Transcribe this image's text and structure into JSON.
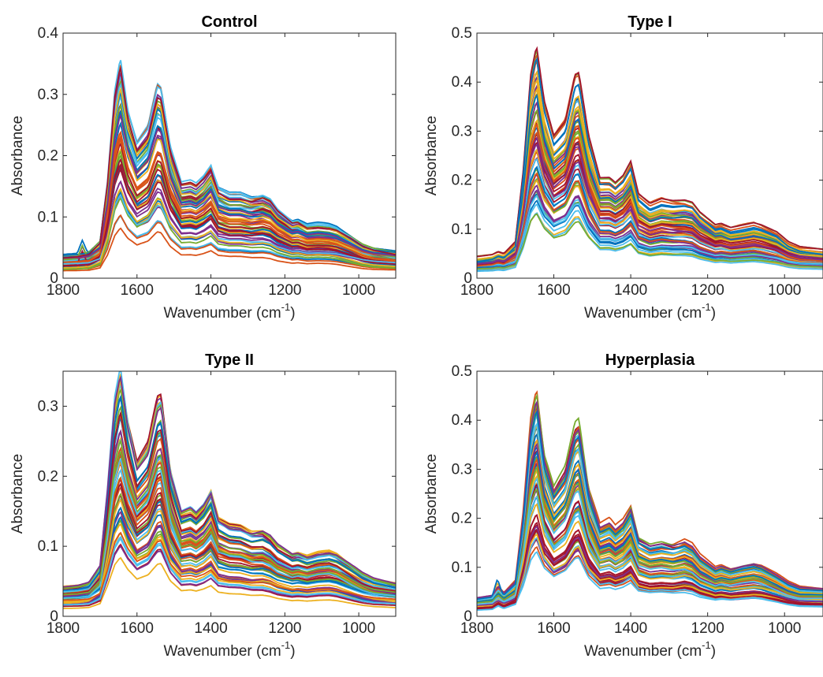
{
  "chart_data": [
    {
      "type": "line",
      "title": "Control",
      "xlabel": {
        "main": "Wavenumber (cm",
        "sup": "-1",
        "close": ")"
      },
      "ylabel": "Absorbance",
      "xlim": [
        1800,
        900
      ],
      "ylim": [
        0,
        0.4
      ],
      "xticks": [
        1800,
        1600,
        1400,
        1200,
        1000
      ],
      "yticks": [
        0,
        0.1,
        0.2,
        0.3,
        0.4
      ],
      "ytick_labels": [
        "0",
        "0.1",
        "0.2",
        "0.3",
        "0.4"
      ],
      "series_count": 60,
      "amplitude_range": [
        0.075,
        0.355
      ],
      "shoulder_1745": true,
      "palette": [
        "#0072BD",
        "#D95319",
        "#EDB120",
        "#7E2F8E",
        "#77AC30",
        "#4DBEEE",
        "#A2142F"
      ],
      "representative_spectrum": {
        "x": [
          1800,
          1760,
          1745,
          1730,
          1700,
          1680,
          1660,
          1645,
          1625,
          1600,
          1570,
          1545,
          1535,
          1510,
          1480,
          1455,
          1440,
          1420,
          1400,
          1380,
          1350,
          1320,
          1290,
          1260,
          1240,
          1220,
          1180,
          1165,
          1140,
          1110,
          1080,
          1060,
          1020,
          990,
          960,
          900
        ],
        "y": [
          0.026,
          0.028,
          0.03,
          0.031,
          0.05,
          0.15,
          0.3,
          0.355,
          0.27,
          0.215,
          0.24,
          0.31,
          0.305,
          0.21,
          0.15,
          0.153,
          0.148,
          0.16,
          0.178,
          0.14,
          0.13,
          0.13,
          0.124,
          0.128,
          0.122,
          0.105,
          0.085,
          0.087,
          0.078,
          0.08,
          0.078,
          0.074,
          0.058,
          0.045,
          0.038,
          0.032
        ]
      }
    },
    {
      "type": "line",
      "title": "Type I",
      "xlabel": {
        "main": "Wavenumber (cm",
        "sup": "-1",
        "close": ")"
      },
      "ylabel": "Absorbance",
      "xlim": [
        1800,
        900
      ],
      "ylim": [
        0,
        0.5
      ],
      "xticks": [
        1800,
        1600,
        1400,
        1200,
        1000
      ],
      "yticks": [
        0,
        0.1,
        0.2,
        0.3,
        0.4,
        0.5
      ],
      "ytick_labels": [
        "0",
        "0.1",
        "0.2",
        "0.3",
        "0.4",
        "0.5"
      ],
      "series_count": 60,
      "amplitude_range": [
        0.1,
        0.46
      ],
      "shoulder_1745": false,
      "palette": [
        "#0072BD",
        "#D95319",
        "#EDB120",
        "#7E2F8E",
        "#77AC30",
        "#4DBEEE",
        "#A2142F"
      ],
      "representative_spectrum": {
        "x": [
          1800,
          1760,
          1745,
          1730,
          1700,
          1680,
          1660,
          1645,
          1625,
          1600,
          1570,
          1545,
          1535,
          1510,
          1480,
          1455,
          1440,
          1420,
          1400,
          1380,
          1350,
          1320,
          1290,
          1260,
          1240,
          1220,
          1180,
          1165,
          1140,
          1110,
          1080,
          1060,
          1020,
          990,
          960,
          900
        ],
        "y": [
          0.03,
          0.034,
          0.04,
          0.036,
          0.06,
          0.2,
          0.4,
          0.46,
          0.35,
          0.28,
          0.31,
          0.405,
          0.41,
          0.28,
          0.19,
          0.19,
          0.18,
          0.195,
          0.225,
          0.16,
          0.14,
          0.15,
          0.145,
          0.145,
          0.14,
          0.12,
          0.095,
          0.098,
          0.09,
          0.095,
          0.1,
          0.095,
          0.08,
          0.06,
          0.05,
          0.045
        ]
      }
    },
    {
      "type": "line",
      "title": "Type II",
      "xlabel": {
        "main": "Wavenumber (cm",
        "sup": "-1",
        "close": ")"
      },
      "ylabel": "Absorbance",
      "xlim": [
        1800,
        900
      ],
      "ylim": [
        0,
        0.35
      ],
      "xticks": [
        1800,
        1600,
        1400,
        1200,
        1000
      ],
      "yticks": [
        0,
        0.1,
        0.2,
        0.3
      ],
      "ytick_labels": [
        "0",
        "0.1",
        "0.2",
        "0.3"
      ],
      "series_count": 60,
      "amplitude_range": [
        0.07,
        0.345
      ],
      "shoulder_1745": false,
      "palette": [
        "#0072BD",
        "#D95319",
        "#EDB120",
        "#7E2F8E",
        "#77AC30",
        "#4DBEEE",
        "#A2142F"
      ],
      "representative_spectrum": {
        "x": [
          1800,
          1760,
          1745,
          1730,
          1700,
          1680,
          1660,
          1645,
          1625,
          1600,
          1570,
          1545,
          1535,
          1510,
          1480,
          1455,
          1440,
          1420,
          1400,
          1380,
          1350,
          1320,
          1290,
          1260,
          1240,
          1220,
          1180,
          1165,
          1140,
          1110,
          1080,
          1060,
          1020,
          990,
          960,
          900
        ],
        "y": [
          0.03,
          0.032,
          0.034,
          0.036,
          0.06,
          0.17,
          0.3,
          0.345,
          0.27,
          0.21,
          0.235,
          0.3,
          0.305,
          0.2,
          0.14,
          0.145,
          0.138,
          0.15,
          0.17,
          0.13,
          0.12,
          0.118,
          0.11,
          0.112,
          0.105,
          0.092,
          0.078,
          0.08,
          0.075,
          0.08,
          0.082,
          0.078,
          0.062,
          0.05,
          0.042,
          0.035
        ]
      }
    },
    {
      "type": "line",
      "title": "Hyperplasia",
      "xlabel": {
        "main": "Wavenumber (cm",
        "sup": "-1",
        "close": ")"
      },
      "ylabel": "Absorbance",
      "xlim": [
        1800,
        900
      ],
      "ylim": [
        0,
        0.5
      ],
      "xticks": [
        1800,
        1600,
        1400,
        1200,
        1000
      ],
      "yticks": [
        0,
        0.1,
        0.2,
        0.3,
        0.4,
        0.5
      ],
      "ytick_labels": [
        "0",
        "0.1",
        "0.2",
        "0.3",
        "0.4",
        "0.5"
      ],
      "series_count": 60,
      "amplitude_range": [
        0.11,
        0.465
      ],
      "shoulder_1745": true,
      "palette": [
        "#0072BD",
        "#D95319",
        "#EDB120",
        "#7E2F8E",
        "#77AC30",
        "#4DBEEE",
        "#A2142F"
      ],
      "representative_spectrum": {
        "x": [
          1800,
          1760,
          1745,
          1730,
          1700,
          1680,
          1660,
          1645,
          1625,
          1600,
          1570,
          1545,
          1535,
          1510,
          1480,
          1455,
          1440,
          1420,
          1400,
          1380,
          1350,
          1320,
          1290,
          1260,
          1240,
          1220,
          1180,
          1165,
          1140,
          1110,
          1080,
          1060,
          1020,
          990,
          960,
          900
        ],
        "y": [
          0.025,
          0.03,
          0.05,
          0.035,
          0.06,
          0.2,
          0.4,
          0.465,
          0.33,
          0.26,
          0.3,
          0.39,
          0.4,
          0.26,
          0.18,
          0.19,
          0.175,
          0.19,
          0.22,
          0.155,
          0.14,
          0.145,
          0.14,
          0.148,
          0.138,
          0.115,
          0.09,
          0.095,
          0.088,
          0.095,
          0.1,
          0.095,
          0.075,
          0.058,
          0.048,
          0.045
        ]
      }
    }
  ]
}
